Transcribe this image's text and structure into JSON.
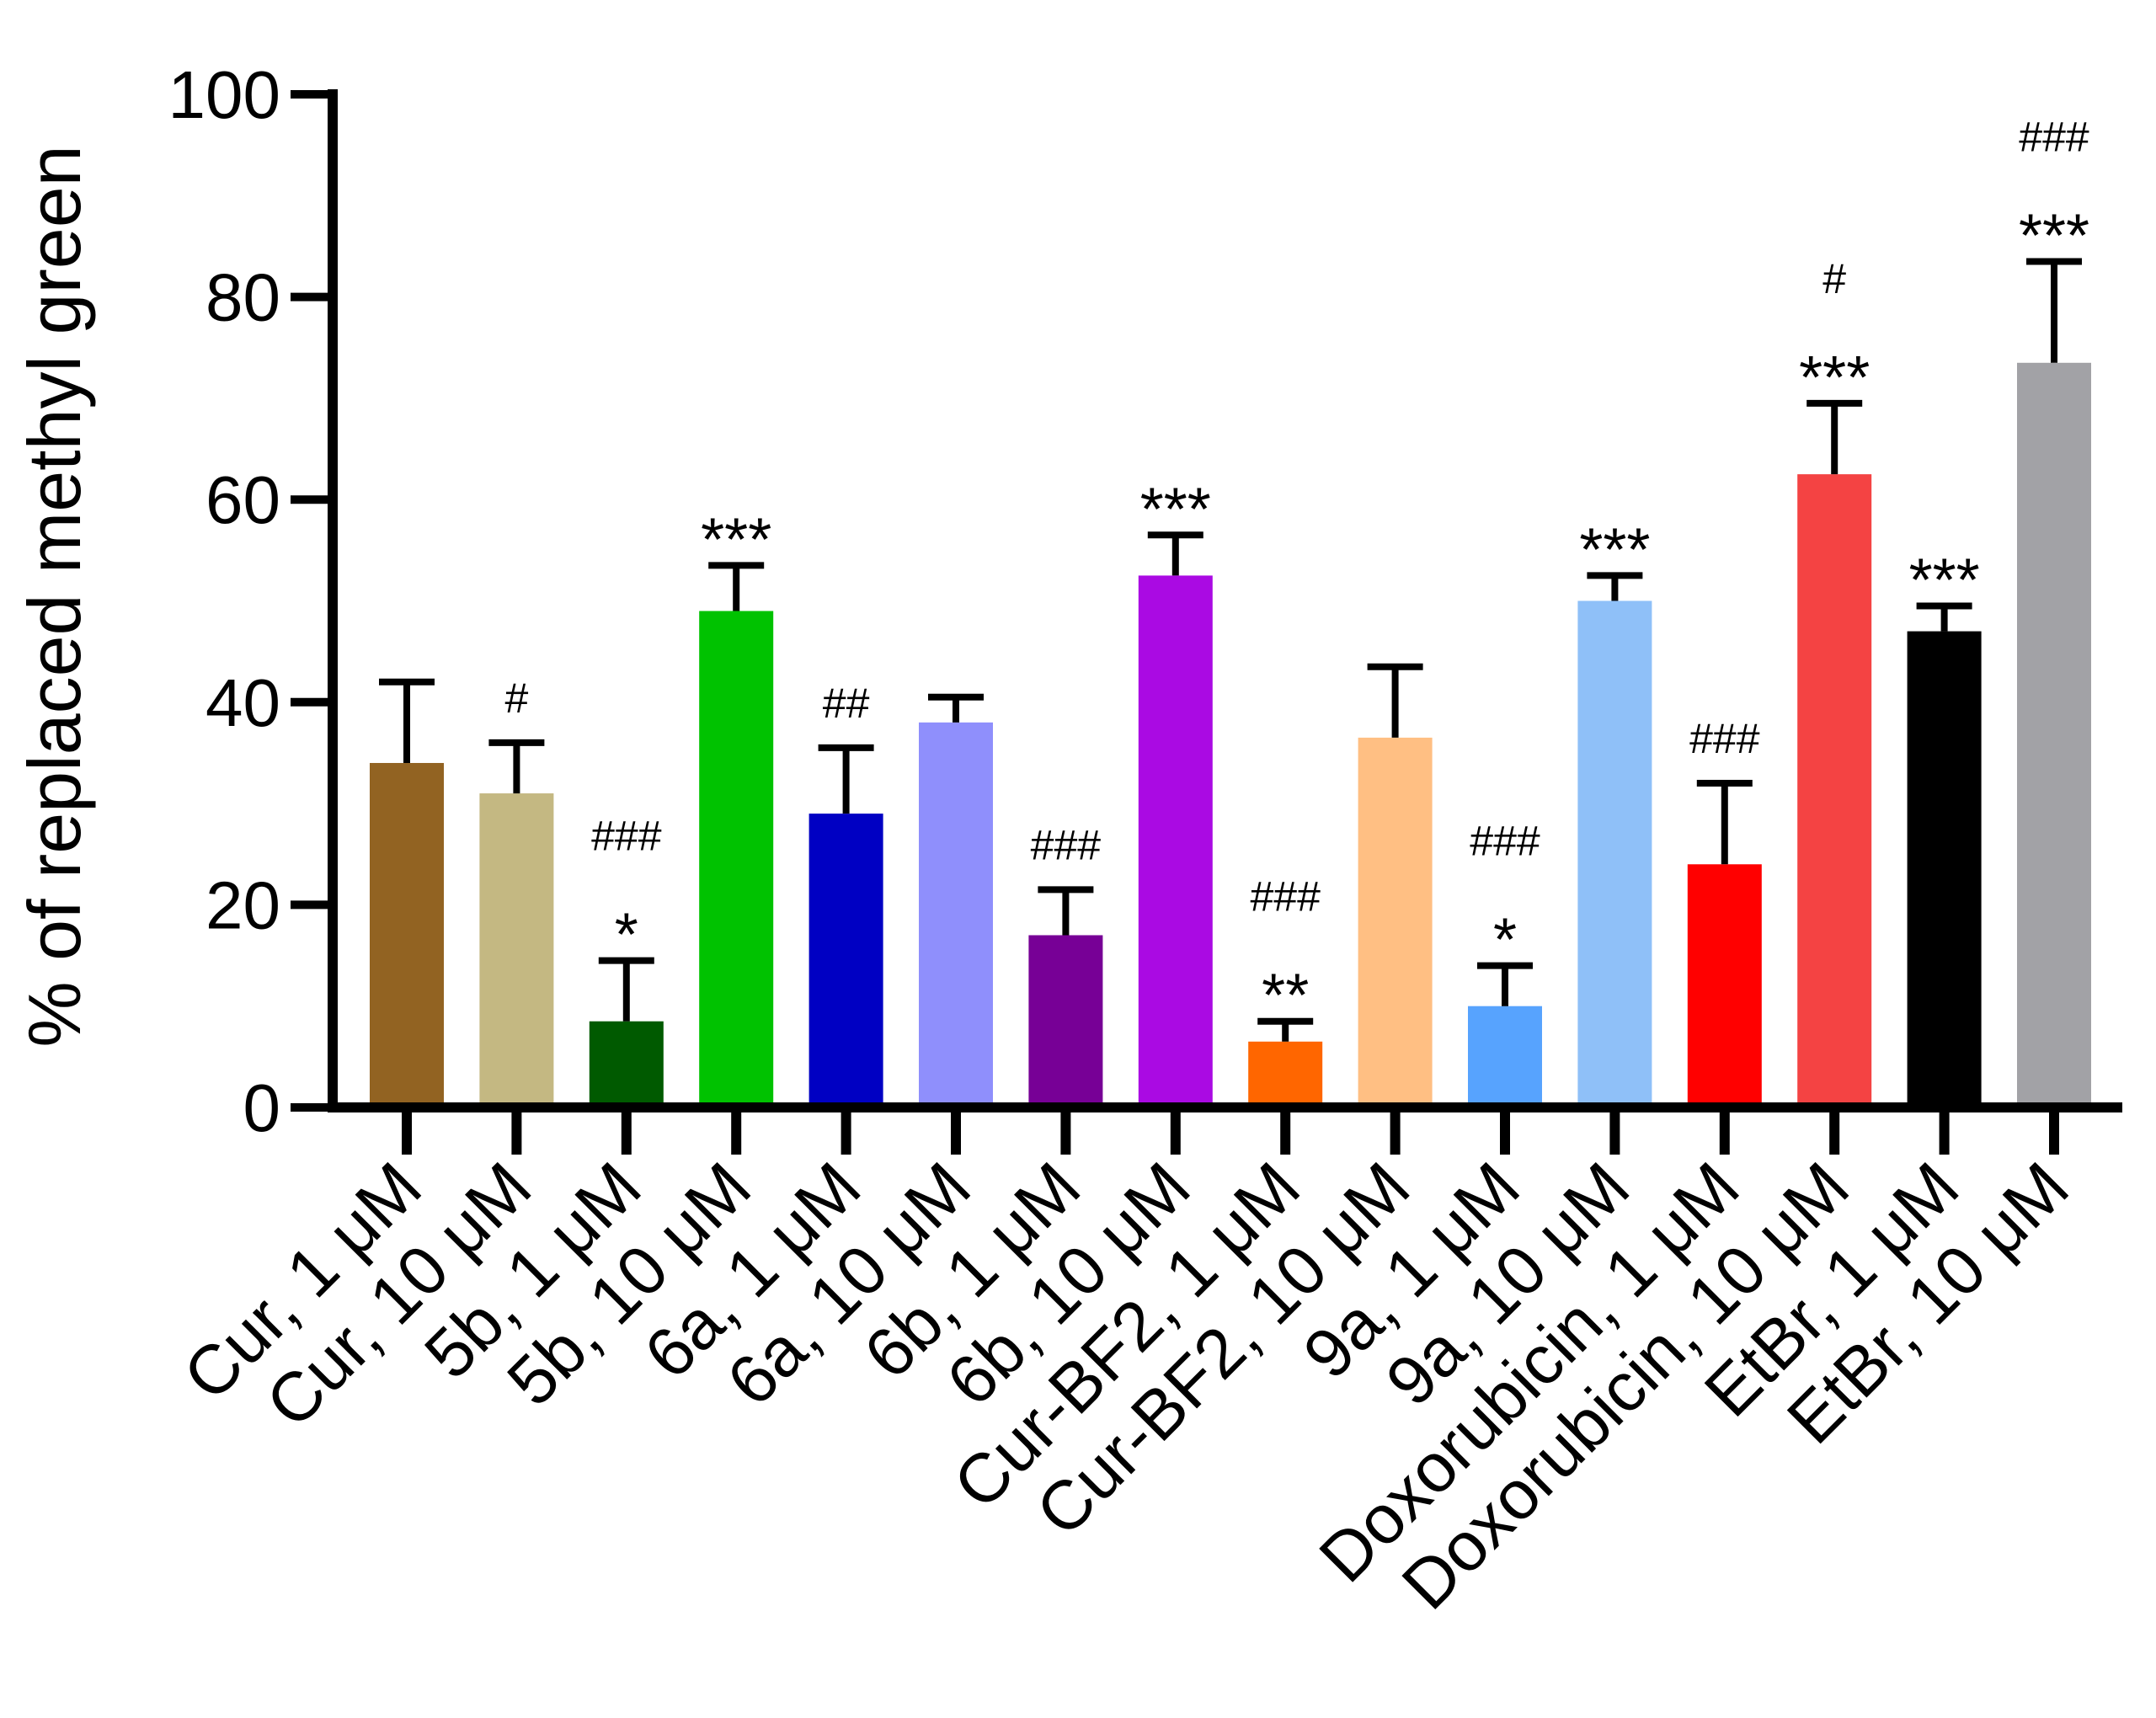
{
  "chart_data": {
    "type": "bar",
    "ylabel": "% of replaced methyl green",
    "ylim": [
      0,
      100
    ],
    "yticks": [
      0,
      20,
      40,
      60,
      80,
      100
    ],
    "grid": false,
    "legend": "none",
    "categories": [
      "Cur, 1 μM",
      "Cur, 10 μM",
      "5b, 1 μM",
      "5b, 10 μM",
      "6a, 1 μM",
      "6a, 10 μM",
      "6b, 1 μM",
      "6b, 10 μM",
      "Cur-BF2, 1 μM",
      "Cur-BF2, 10 μM",
      "9a, 1 μM",
      "9a, 10 μM",
      "Doxorubicin, 1 μM",
      "Doxorubicin, 10 μM",
      "EtBr, 1 μM",
      "EtBr, 10 μM"
    ],
    "values": [
      34,
      31,
      8.5,
      49,
      29,
      38,
      17,
      52.5,
      6.5,
      36.5,
      10,
      50,
      24,
      62.5,
      47,
      73.5
    ],
    "errors": [
      8,
      5,
      6,
      4.5,
      6.5,
      2.5,
      4.5,
      4,
      2,
      7,
      4,
      2.5,
      8,
      7,
      2.5,
      10
    ],
    "colors": [
      "#926322",
      "#c4b882",
      "#005a00",
      "#00c200",
      "#0000c3",
      "#8f8ffc",
      "#770096",
      "#aa0ae3",
      "#ff6600",
      "#ffbf83",
      "#57a3fe",
      "#8fc0f8",
      "#ff0000",
      "#f44343",
      "#000000",
      "#a2a2a6"
    ],
    "stars": [
      "",
      "",
      "*",
      "***",
      "",
      "",
      "",
      "***",
      "**",
      "",
      "*",
      "***",
      "",
      "***",
      "***",
      "***"
    ],
    "hashes": [
      "",
      "#",
      "###",
      "",
      "##",
      "",
      "###",
      "",
      "###",
      "",
      "###",
      "",
      "###",
      "#",
      "",
      "###"
    ]
  }
}
